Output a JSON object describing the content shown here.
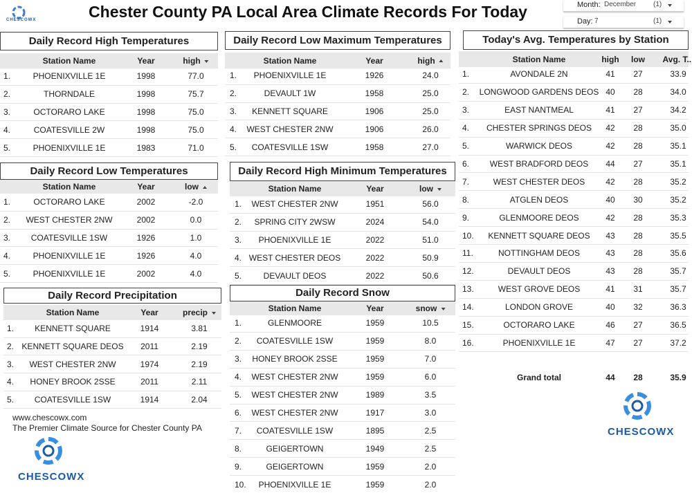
{
  "header": {
    "title": "Chester County PA Local Area Climate Records For Today",
    "logo_small": "CHESCOWX"
  },
  "filters": [
    {
      "label": "Month:",
      "value": "December",
      "count": "(1)"
    },
    {
      "label": "Day:",
      "value": "7",
      "count": "(1)"
    }
  ],
  "tables": [
    {
      "title": "Daily Record High Temperatures",
      "columns": [
        "Station Name",
        "Year",
        "high"
      ],
      "sort": "desc",
      "rows": [
        [
          "1.",
          "PHOENIXVILLE 1E",
          "1998",
          "77.0"
        ],
        [
          "2.",
          "THORNDALE",
          "1998",
          "75.7"
        ],
        [
          "3.",
          "OCTORARO LAKE",
          "1998",
          "75.0"
        ],
        [
          "4.",
          "COATESVILLE 2W",
          "1998",
          "75.0"
        ],
        [
          "5.",
          "PHOENIXVILLE 1E",
          "1983",
          "71.0"
        ]
      ]
    },
    {
      "title": "Daily Record Low Temperatures",
      "columns": [
        "Station Name",
        "Year",
        "low"
      ],
      "sort": "asc",
      "rows": [
        [
          "1.",
          "OCTORARO LAKE",
          "2002",
          "-2.0"
        ],
        [
          "2.",
          "WEST CHESTER 2NW",
          "2002",
          "0.0"
        ],
        [
          "3.",
          "COATESVILLE 1SW",
          "1926",
          "1.0"
        ],
        [
          "4.",
          "PHOENIXVILLE 1E",
          "1926",
          "4.0"
        ],
        [
          "5.",
          "PHOENIXVILLE 1E",
          "2002",
          "4.0"
        ]
      ]
    },
    {
      "title": "Daily Record Precipitation",
      "columns": [
        "Station Name",
        "Year",
        "precip"
      ],
      "sort": "desc",
      "rows": [
        [
          "1.",
          "KENNETT SQUARE",
          "1914",
          "3.81"
        ],
        [
          "2.",
          "KENNETT SQUARE DEOS",
          "2011",
          "2.19"
        ],
        [
          "3.",
          "WEST CHESTER 2NW",
          "1974",
          "2.19"
        ],
        [
          "4.",
          "HONEY BROOK 2SSE",
          "2011",
          "2.11"
        ],
        [
          "5.",
          "COATESVILLE 1SW",
          "1914",
          "2.04"
        ]
      ]
    },
    {
      "title": "Daily Record Low Maximum Temperatures",
      "columns": [
        "Station Name",
        "Year",
        "high"
      ],
      "sort": "asc",
      "rows": [
        [
          "1.",
          "PHOENIXVILLE 1E",
          "1926",
          "24.0"
        ],
        [
          "2.",
          "DEVAULT 1W",
          "1958",
          "25.0"
        ],
        [
          "3.",
          "KENNETT SQUARE",
          "1906",
          "25.0"
        ],
        [
          "4.",
          "WEST CHESTER 2NW",
          "1906",
          "26.0"
        ],
        [
          "5.",
          "COATESVILLE 1SW",
          "1958",
          "27.0"
        ]
      ]
    },
    {
      "title": "Daily Record High Minimum Temperatures",
      "columns": [
        "Station Name",
        "Year",
        "low"
      ],
      "sort": "desc",
      "rows": [
        [
          "1.",
          "WEST CHESTER 2NW",
          "1951",
          "56.0"
        ],
        [
          "2.",
          "SPRING CITY 2WSW",
          "2024",
          "54.0"
        ],
        [
          "3.",
          "PHOENIXVILLE 1E",
          "2022",
          "51.0"
        ],
        [
          "4.",
          "WEST CHESTER DEOS",
          "2022",
          "50.9"
        ],
        [
          "5.",
          "DEVAULT DEOS",
          "2022",
          "50.6"
        ]
      ]
    },
    {
      "title": "Daily Record Snow",
      "columns": [
        "Station Name",
        "Year",
        "snow"
      ],
      "sort": "desc",
      "rows": [
        [
          "1.",
          "GLENMOORE",
          "1959",
          "10.5"
        ],
        [
          "2.",
          "COATESVILLE 1SW",
          "1959",
          "8.0"
        ],
        [
          "3.",
          "HONEY BROOK 2SSE",
          "1959",
          "7.0"
        ],
        [
          "4.",
          "WEST CHESTER 2NW",
          "1959",
          "6.0"
        ],
        [
          "5.",
          "WEST CHESTER 2NW",
          "1989",
          "3.5"
        ],
        [
          "6.",
          "WEST CHESTER 2NW",
          "1917",
          "3.0"
        ],
        [
          "7.",
          "COATESVILLE 1SW",
          "1895",
          "2.5"
        ],
        [
          "8.",
          "GEIGERTOWN",
          "1949",
          "2.5"
        ],
        [
          "9.",
          "GEIGERTOWN",
          "1959",
          "2.0"
        ],
        [
          "10.",
          "PHOENIXVILLE 1E",
          "1959",
          "2.0"
        ]
      ]
    },
    {
      "title": "Today's Avg. Temperatures by Station",
      "columns": [
        "Station Name",
        "high",
        "low",
        "Avg. T..."
      ],
      "rows": [
        [
          "1.",
          "AVONDALE 2N",
          "41",
          "27",
          "33.9"
        ],
        [
          "2.",
          "LONGWOOD GARDENS DEOS",
          "40",
          "28",
          "34.0"
        ],
        [
          "3.",
          "EAST NANTMEAL",
          "41",
          "27",
          "34.2"
        ],
        [
          "4.",
          "CHESTER SPRINGS DEOS",
          "42",
          "28",
          "35.0"
        ],
        [
          "5.",
          "WARWICK DEOS",
          "42",
          "28",
          "35.1"
        ],
        [
          "6.",
          "WEST BRADFORD DEOS",
          "44",
          "27",
          "35.1"
        ],
        [
          "7.",
          "WEST CHESTER DEOS",
          "42",
          "28",
          "35.2"
        ],
        [
          "8.",
          "ATGLEN DEOS",
          "40",
          "30",
          "35.2"
        ],
        [
          "9.",
          "GLENMOORE DEOS",
          "42",
          "28",
          "35.3"
        ],
        [
          "10.",
          "KENNETT SQUARE DEOS",
          "43",
          "28",
          "35.5"
        ],
        [
          "11.",
          "NOTTINGHAM DEOS",
          "43",
          "28",
          "35.6"
        ],
        [
          "12.",
          "DEVAULT DEOS",
          "43",
          "28",
          "35.7"
        ],
        [
          "13.",
          "WEST GROVE DEOS",
          "41",
          "31",
          "35.7"
        ],
        [
          "14.",
          "LONDON GROVE",
          "40",
          "32",
          "36.3"
        ],
        [
          "15.",
          "OCTORARO LAKE",
          "46",
          "27",
          "36.5"
        ],
        [
          "16.",
          "PHOENIXVILLE 1E",
          "47",
          "27",
          "37.2"
        ]
      ],
      "totals": [
        "Grand total",
        "44",
        "28",
        "35.9"
      ]
    }
  ],
  "footer": {
    "website": "www.chescowx.com",
    "tagline": "The Premier Climate Source for Chester County PA",
    "logo": "CHESCOWX"
  },
  "side_logo": "CHESCOWX"
}
